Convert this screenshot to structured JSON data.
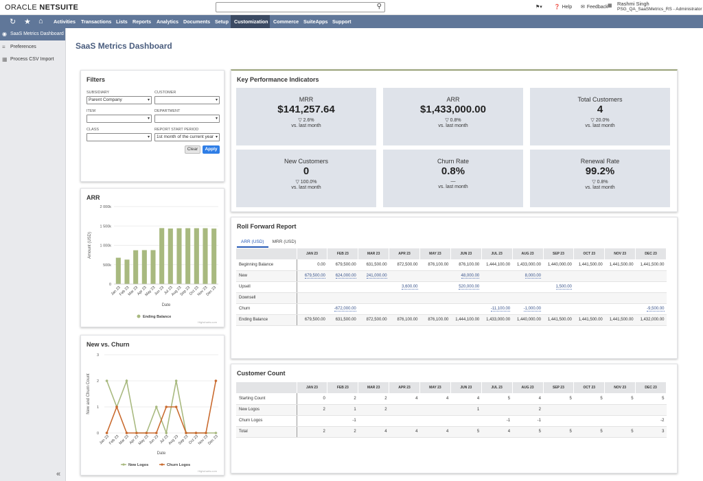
{
  "topbar": {
    "logo_main": "ORACLE",
    "logo_suite": "NETSUITE",
    "search_icon": "search-icon",
    "help": "Help",
    "feedback": "Feedback",
    "user_name": "Rashmi Singh",
    "user_role": "PSG_QA_SaaSMetrics_RS - Administrator"
  },
  "nav": {
    "items": [
      "Activities",
      "Transactions",
      "Lists",
      "Reports",
      "Analytics",
      "Documents",
      "Setup",
      "Customization",
      "Commerce",
      "SuiteApps",
      "Support"
    ],
    "active": "Customization"
  },
  "sidebar": {
    "items": [
      "SaaS Metrics Dashboard",
      "Preferences",
      "Process CSV Import"
    ],
    "collapse": "«"
  },
  "page": {
    "title": "SaaS Metrics Dashboard"
  },
  "filters": {
    "title": "Filters",
    "subsidiary_label": "SUBSIDIARY",
    "subsidiary_value": "Parent Company",
    "customer_label": "CUSTOMER",
    "customer_value": "",
    "item_label": "ITEM",
    "item_value": "",
    "department_label": "DEPARTMENT",
    "department_value": "",
    "class_label": "CLASS",
    "class_value": "",
    "period_label": "REPORT START PERIOD",
    "period_value": "1st month of the current year",
    "clear": "Clear",
    "apply": "Apply"
  },
  "kpi": {
    "title": "Key Performance Indicators",
    "cards": [
      {
        "title": "MRR",
        "value": "$141,257.64",
        "change": "▽ 2.6%",
        "sub": "vs. last month"
      },
      {
        "title": "ARR",
        "value": "$1,433,000.00",
        "change": "▽ 0.8%",
        "sub": "vs. last month"
      },
      {
        "title": "Total Customers",
        "value": "4",
        "change": "▽ 20.0%",
        "sub": "vs. last month"
      },
      {
        "title": "New Customers",
        "value": "0",
        "change": "▽ 100.0%",
        "sub": "vs. last month"
      },
      {
        "title": "Churn Rate",
        "value": "0.8%",
        "change": "—",
        "sub": "vs. last month"
      },
      {
        "title": "Renewal Rate",
        "value": "99.2%",
        "change": "▽ 0.8%",
        "sub": "vs. last month"
      }
    ]
  },
  "months": [
    "JAN 23",
    "FEB 23",
    "MAR 23",
    "APR 23",
    "MAY 23",
    "JUN 23",
    "JUL 23",
    "AUG 23",
    "SEP 23",
    "OCT 23",
    "NOV 23",
    "DEC 23"
  ],
  "roll_forward": {
    "title": "Roll Forward Report",
    "tabs": [
      "ARR (USD)",
      "MRR (USD)"
    ],
    "rows": [
      {
        "label": "Beginning Balance",
        "cells": [
          "0.00",
          "679,500.00",
          "631,500.00",
          "872,500.00",
          "876,100.00",
          "876,100.00",
          "1,444,100.00",
          "1,433,000.00",
          "1,440,000.00",
          "1,441,500.00",
          "1,441,500.00",
          "1,441,500.00"
        ]
      },
      {
        "label": "New",
        "link": true,
        "cells": [
          "679,500.00",
          "624,000.00",
          "241,000.00",
          "",
          "",
          "48,000.00",
          "",
          "8,000.00",
          "",
          "",
          "",
          ""
        ]
      },
      {
        "label": "Upsell",
        "link": true,
        "cells": [
          "",
          "",
          "",
          "3,600.00",
          "",
          "520,000.00",
          "",
          "",
          "1,500.00",
          "",
          "",
          ""
        ]
      },
      {
        "label": "Downsell",
        "link": true,
        "cells": [
          "",
          "",
          "",
          "",
          "",
          "",
          "",
          "",
          "",
          "",
          "",
          ""
        ]
      },
      {
        "label": "Churn",
        "link": true,
        "cells": [
          "",
          "-672,000.00",
          "",
          "",
          "",
          "",
          "-11,100.00",
          "-1,000.00",
          "",
          "",
          "",
          "-9,500.00"
        ]
      },
      {
        "label": "Ending Balance",
        "cells": [
          "679,500.00",
          "631,500.00",
          "872,500.00",
          "876,100.00",
          "876,100.00",
          "1,444,100.00",
          "1,433,000.00",
          "1,440,000.00",
          "1,441,500.00",
          "1,441,500.00",
          "1,441,500.00",
          "1,432,000.00"
        ]
      }
    ]
  },
  "customer_count": {
    "title": "Customer Count",
    "rows": [
      {
        "label": "Starting Count",
        "cells": [
          "0",
          "2",
          "2",
          "4",
          "4",
          "4",
          "5",
          "4",
          "5",
          "5",
          "5",
          "5"
        ]
      },
      {
        "label": "New Logos",
        "cells": [
          "2",
          "1",
          "2",
          "",
          "",
          "1",
          "",
          "2",
          "",
          "",
          "",
          ""
        ]
      },
      {
        "label": "Churn Logos",
        "cells": [
          "",
          "-1",
          "",
          "",
          "",
          "",
          "-1",
          "-1",
          "",
          "",
          "",
          "-2"
        ]
      },
      {
        "label": "Total",
        "cells": [
          "2",
          "2",
          "4",
          "4",
          "4",
          "5",
          "4",
          "5",
          "5",
          "5",
          "5",
          "3"
        ]
      }
    ]
  },
  "credits": "Highcharts.com",
  "chart_data": [
    {
      "type": "bar",
      "title": "ARR",
      "xlabel": "Date",
      "ylabel": "Amount (USD)",
      "ylim": [
        0,
        2000000
      ],
      "yticks": [
        "0",
        "500k",
        "1 000k",
        "1 500k",
        "2 000k"
      ],
      "categories": [
        "Jan 23",
        "Feb 23",
        "Mar 23",
        "Apr 23",
        "May 23",
        "Jun 23",
        "Jul 23",
        "Aug 23",
        "Sep 23",
        "Oct 23",
        "Nov 23",
        "Dec 23"
      ],
      "series": [
        {
          "name": "Ending Balance",
          "color": "#a8b97f",
          "values": [
            679500,
            631500,
            872500,
            876100,
            876100,
            1444100,
            1433000,
            1440000,
            1441500,
            1441500,
            1441500,
            1432000
          ]
        }
      ],
      "legend": "bottom"
    },
    {
      "type": "line",
      "title": "New vs. Churn",
      "xlabel": "Date",
      "ylabel": "New and Churn Count",
      "ylim": [
        0,
        3
      ],
      "yticks": [
        "0",
        "1",
        "2",
        "3"
      ],
      "categories": [
        "Jan 23",
        "Feb 23",
        "Mar 23",
        "Apr 23",
        "May 23",
        "Jun 23",
        "Jul 23",
        "Aug 23",
        "Sep 23",
        "Oct 23",
        "Nov 23",
        "Dec 23"
      ],
      "series": [
        {
          "name": "New Logos",
          "color": "#a8b97f",
          "values": [
            2,
            1,
            2,
            0,
            0,
            1,
            0,
            2,
            0,
            0,
            0,
            0
          ]
        },
        {
          "name": "Churn Logos",
          "color": "#c96a2e",
          "values": [
            0,
            1,
            0,
            0,
            0,
            0,
            1,
            1,
            0,
            0,
            0,
            2
          ]
        }
      ],
      "legend": "bottom"
    }
  ]
}
